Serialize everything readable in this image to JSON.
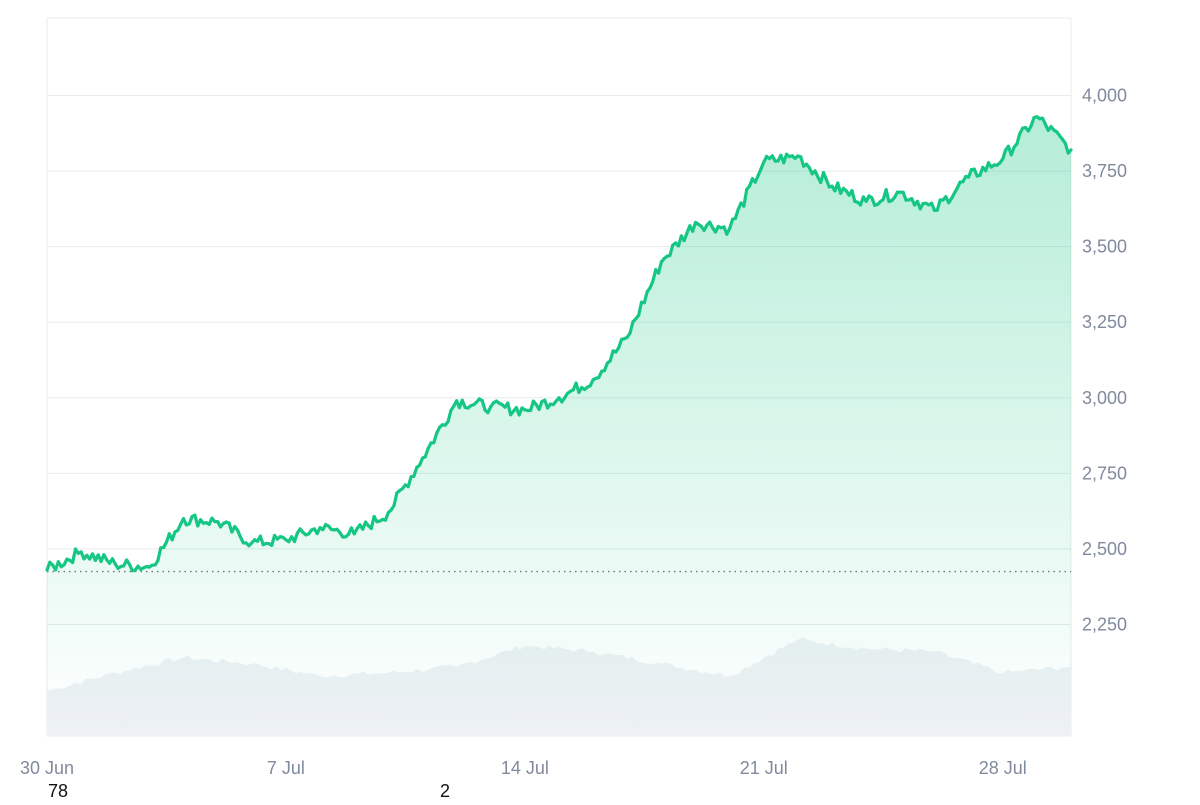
{
  "chart_data": {
    "type": "area",
    "title": "",
    "xlabel": "",
    "ylabel": "",
    "x_range": [
      "2024-06-30",
      "2024-07-30"
    ],
    "ylim": [
      2000,
      4250
    ],
    "y_ticks": [
      2250,
      2500,
      2750,
      3000,
      3250,
      3500,
      3750,
      4000
    ],
    "y_tick_labels": [
      "2,250",
      "2,500",
      "2,750",
      "3,000",
      "3,250",
      "3,500",
      "3,750",
      "4,000"
    ],
    "x_ticks": [
      {
        "date": "2024-06-30",
        "label": "30 Jun"
      },
      {
        "date": "2024-07-07",
        "label": "7 Jul"
      },
      {
        "date": "2024-07-14",
        "label": "14 Jul"
      },
      {
        "date": "2024-07-21",
        "label": "21 Jul"
      },
      {
        "date": "2024-07-28",
        "label": "28 Jul"
      }
    ],
    "baseline": 2425,
    "grid": true,
    "legend": "none",
    "bottom_labels": [
      "78",
      "2"
    ],
    "colors": {
      "up_line": "#16c784",
      "down_line": "#ea3943",
      "area_fill": "#16c784",
      "volume": "#eef1f5",
      "grid": "#e8ebef",
      "axis_text": "#808a9d",
      "baseline": "#6b7280"
    },
    "series": [
      {
        "x": [
          "2024-06-30",
          "2024-07-01",
          "2024-07-02",
          "2024-07-03",
          "2024-07-04",
          "2024-07-05",
          "2024-07-06",
          "2024-07-07",
          "2024-07-08",
          "2024-07-09",
          "2024-07-10",
          "2024-07-11",
          "2024-07-12",
          "2024-07-13",
          "2024-07-14",
          "2024-07-15",
          "2024-07-16",
          "2024-07-17",
          "2024-07-18",
          "2024-07-19",
          "2024-07-20",
          "2024-07-21",
          "2024-07-22",
          "2024-07-23",
          "2024-07-24",
          "2024-07-25",
          "2024-07-26",
          "2024-07-27",
          "2024-07-28",
          "2024-07-29",
          "2024-07-30"
        ],
        "values": [
          2430,
          2490,
          2450,
          2440,
          2600,
          2590,
          2520,
          2530,
          2570,
          2550,
          2620,
          2800,
          2990,
          2970,
          2960,
          3000,
          3060,
          3200,
          3450,
          3580,
          3560,
          3780,
          3800,
          3700,
          3650,
          3680,
          3620,
          3730,
          3790,
          3930,
          3820
        ]
      },
      {
        "x": [
          "2024-06-30",
          "2024-07-02",
          "2024-07-04",
          "2024-07-06",
          "2024-07-08",
          "2024-07-10",
          "2024-07-12",
          "2024-07-14",
          "2024-07-16",
          "2024-07-18",
          "2024-07-20",
          "2024-07-22",
          "2024-07-24",
          "2024-07-26",
          "2024-07-28",
          "2024-07-30"
        ],
        "values": [
          2030,
          2090,
          2140,
          2120,
          2080,
          2090,
          2110,
          2180,
          2160,
          2120,
          2080,
          2200,
          2170,
          2160,
          2090,
          2110
        ]
      }
    ]
  }
}
